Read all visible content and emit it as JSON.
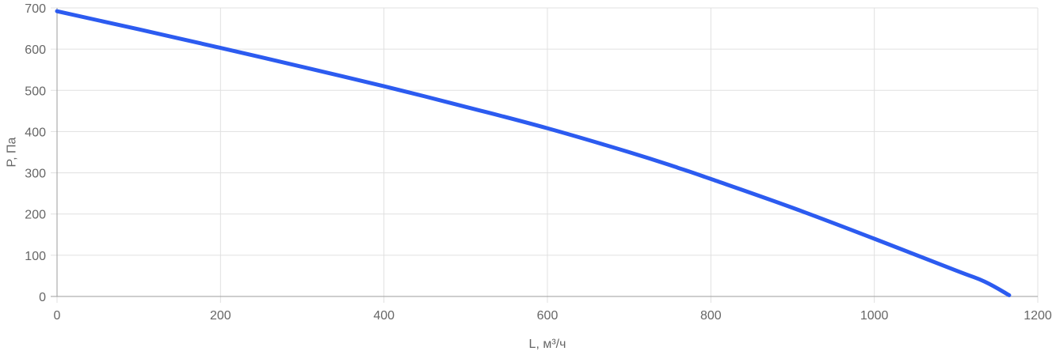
{
  "chart_data": {
    "type": "line",
    "title": "",
    "xlabel": "L, м³/ч",
    "ylabel": "P, Па",
    "xlim": [
      0,
      1200
    ],
    "ylim": [
      0,
      700
    ],
    "xticks": [
      "0",
      "200",
      "400",
      "600",
      "800",
      "1000",
      "1200"
    ],
    "yticks": [
      "0",
      "100",
      "200",
      "300",
      "400",
      "500",
      "600",
      "700"
    ],
    "grid": true,
    "legend": "none",
    "series": [
      {
        "color": "#2c5bf0",
        "x": [
          0,
          100,
          200,
          300,
          400,
          500,
          600,
          700,
          760,
          800,
          900,
          1000,
          1100,
          1135,
          1165
        ],
        "y": [
          692,
          648,
          603,
          557,
          510,
          460,
          408,
          350,
          312,
          285,
          215,
          140,
          63,
          36,
          3
        ]
      }
    ]
  }
}
